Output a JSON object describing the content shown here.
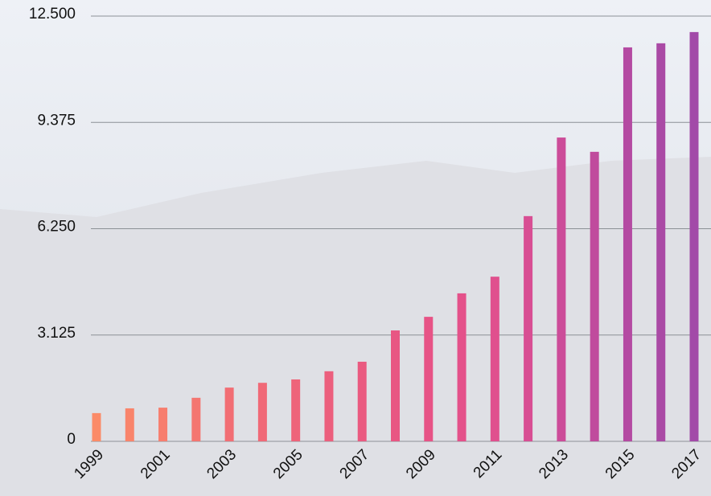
{
  "chart_data": {
    "type": "bar",
    "categories": [
      "1999",
      null,
      "2001",
      null,
      "2003",
      null,
      "2005",
      null,
      "2007",
      null,
      "2009",
      null,
      "2011",
      null,
      "2013",
      null,
      "2015",
      null,
      "2017"
    ],
    "values": [
      830,
      970,
      990,
      1280,
      1580,
      1720,
      1820,
      2060,
      2340,
      3260,
      3660,
      4350,
      4840,
      6620,
      8930,
      8510,
      11580,
      11700,
      12030
    ],
    "colors": [
      "#fb8b68",
      "#f9846b",
      "#f77e6e",
      "#f47671",
      "#f26e74",
      "#f06977",
      "#ee647a",
      "#ec5f7d",
      "#ea5a80",
      "#e85683",
      "#e75386",
      "#e4518a",
      "#e0508e",
      "#d84e93",
      "#cc4c99",
      "#c04b9d",
      "#b44aa2",
      "#aa4aa5",
      "#a24aa8"
    ],
    "ylim": [
      0,
      12500
    ],
    "yticks": [
      0,
      {
        "value": 3125,
        "label": "3.125"
      },
      {
        "value": 6250,
        "label": "6.250"
      },
      {
        "value": 9375,
        "label": "9.375"
      },
      {
        "value": 12500,
        "label": "12.500"
      }
    ],
    "grid": true
  }
}
